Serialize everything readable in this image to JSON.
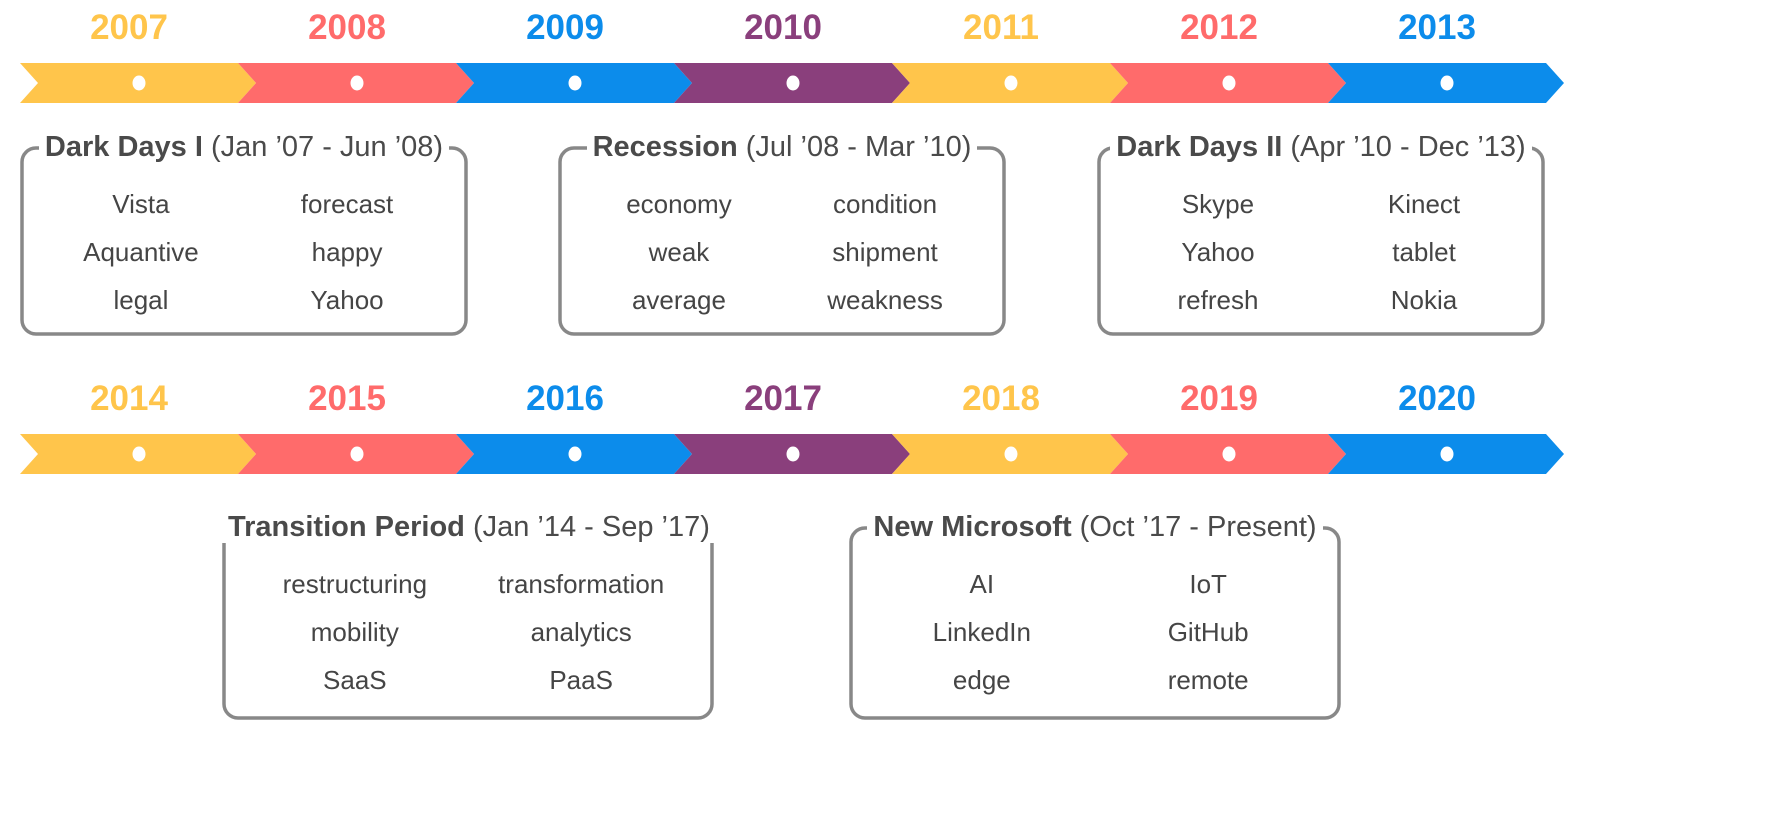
{
  "colors": {
    "yellow": "#FFC54B",
    "coral": "#FF6B6B",
    "blue": "#0C8CEB",
    "purple": "#8A3F7C",
    "border": "#888888",
    "text": "#454545"
  },
  "rows": [
    {
      "years": [
        {
          "label": "2007",
          "color": "#FFC54B"
        },
        {
          "label": "2008",
          "color": "#FF6B6B"
        },
        {
          "label": "2009",
          "color": "#0C8CEB"
        },
        {
          "label": "2010",
          "color": "#8A3F7C"
        },
        {
          "label": "2011",
          "color": "#FFC54B"
        },
        {
          "label": "2012",
          "color": "#FF6B6B"
        },
        {
          "label": "2013",
          "color": "#0C8CEB"
        }
      ],
      "periods": [
        {
          "name": "Dark Days I",
          "range": "(Jan ’07 - Jun ’08)",
          "terms": [
            "Vista",
            "forecast",
            "Aquantive",
            "happy",
            "legal",
            "Yahoo"
          ]
        },
        {
          "name": "Recession",
          "range": "(Jul ’08 - Mar ’10)",
          "terms": [
            "economy",
            "condition",
            "weak",
            "shipment",
            "average",
            "weakness"
          ]
        },
        {
          "name": "Dark Days II",
          "range": "(Apr ’10 - Dec ’13)",
          "terms": [
            "Skype",
            "Kinect",
            "Yahoo",
            "tablet",
            "refresh",
            "Nokia"
          ]
        }
      ]
    },
    {
      "years": [
        {
          "label": "2014",
          "color": "#FFC54B"
        },
        {
          "label": "2015",
          "color": "#FF6B6B"
        },
        {
          "label": "2016",
          "color": "#0C8CEB"
        },
        {
          "label": "2017",
          "color": "#8A3F7C"
        },
        {
          "label": "2018",
          "color": "#FFC54B"
        },
        {
          "label": "2019",
          "color": "#FF6B6B"
        },
        {
          "label": "2020",
          "color": "#0C8CEB"
        }
      ],
      "periods": [
        {
          "name": "Transition Period",
          "range": "(Jan ’14 - Sep ’17)",
          "terms": [
            "restructuring",
            "transformation",
            "mobility",
            "analytics",
            "SaaS",
            "PaaS"
          ]
        },
        {
          "name": "New Microsoft",
          "range": "(Oct ’17 - Present)",
          "terms": [
            "AI",
            "IoT",
            "LinkedIn",
            "GitHub",
            "edge",
            "remote"
          ]
        }
      ]
    }
  ]
}
